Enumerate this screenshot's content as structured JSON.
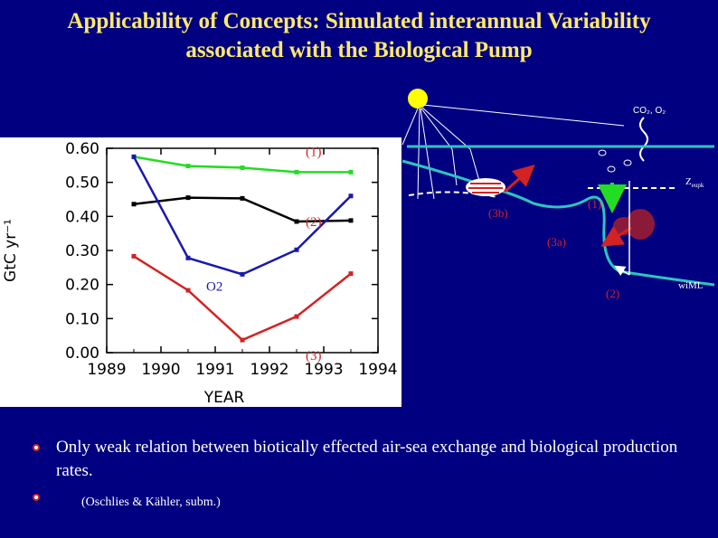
{
  "slide": {
    "title_line1": "Applicability of Concepts: Simulated interannual Variability",
    "title_line2": "associated with the Biological Pump"
  },
  "colors": {
    "background": "#000080",
    "title": "#FFE96B",
    "water": "#2EC4C0",
    "red": "#D32222",
    "green": "#22DD22",
    "blue": "#1818B0"
  },
  "chart_data": {
    "type": "line",
    "title": "",
    "xlabel": "YEAR",
    "ylabel": "GtC yr⁻¹",
    "xlim": [
      1989,
      1994
    ],
    "ylim": [
      0.0,
      0.6
    ],
    "xticks": [
      "1989",
      "1990",
      "1991",
      "1992",
      "1993",
      "1994"
    ],
    "yticks": [
      "0.00",
      "0.10",
      "0.20",
      "0.30",
      "0.40",
      "0.50",
      "0.60"
    ],
    "series": [
      {
        "name": "(1)",
        "color": "#22DD22",
        "x": [
          1989.5,
          1990.5,
          1991.5,
          1992.5,
          1993.5
        ],
        "y": [
          0.575,
          0.548,
          0.543,
          0.53,
          0.53
        ]
      },
      {
        "name": "(2)",
        "color": "#000000",
        "x": [
          1989.5,
          1990.5,
          1991.5,
          1992.5,
          1993.5
        ],
        "y": [
          0.436,
          0.455,
          0.453,
          0.385,
          0.388
        ]
      },
      {
        "name": "O2",
        "color": "#1818B0",
        "x": [
          1989.5,
          1990.5,
          1991.5,
          1992.5,
          1993.5
        ],
        "y": [
          0.575,
          0.278,
          0.23,
          0.302,
          0.46
        ]
      },
      {
        "name": "(3)",
        "color": "#D32222",
        "x": [
          1989.5,
          1990.5,
          1991.5,
          1992.5,
          1993.5
        ],
        "y": [
          0.283,
          0.183,
          0.037,
          0.106,
          0.232
        ]
      }
    ],
    "annotations": [
      {
        "text": "(1)",
        "series": "(1)"
      },
      {
        "text": "(2)",
        "series": "(2)"
      },
      {
        "text": "O2",
        "series": "O2"
      },
      {
        "text": "(3)",
        "series": "(3)"
      }
    ]
  },
  "diagram": {
    "co2_label": "CO₂, O₂",
    "z_label": "Z",
    "z_sub": "eupk",
    "wiml_label": "wiML",
    "labels": {
      "l1": "(1)",
      "l2": "(2)",
      "l3a": "(3a)",
      "l3b": "(3b)"
    }
  },
  "bullets": [
    "Only weak relation between biotically effected air-sea exchange and biological production rates.",
    "(Oschlies & Kähler, subm.)"
  ]
}
